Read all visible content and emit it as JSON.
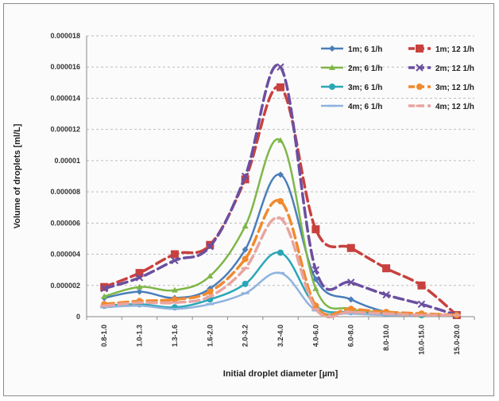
{
  "chart_data": {
    "type": "line",
    "xlabel": "Initial droplet diameter [µm]",
    "ylabel": "Volume of droplets [ml/L]",
    "categories": [
      "0.8-1.0",
      "1.0-1.3",
      "1.3-1.6",
      "1.6-2.0",
      "2.0-3.2",
      "3.2-4.0",
      "4.0-6.0",
      "6.0-8.0",
      "8.0-10.0",
      "10.0-15.0",
      "15.0-20.0"
    ],
    "ylim": [
      0,
      1.8e-05
    ],
    "yticks": [
      {
        "value": 0,
        "label": "0"
      },
      {
        "value": 2e-06,
        "label": "0.000002"
      },
      {
        "value": 4e-06,
        "label": "0.000004"
      },
      {
        "value": 6e-06,
        "label": "0.000006"
      },
      {
        "value": 8e-06,
        "label": "0.000008"
      },
      {
        "value": 1e-05,
        "label": "0.00001"
      },
      {
        "value": 1.2e-05,
        "label": "0.000012"
      },
      {
        "value": 1.4e-05,
        "label": "0.000014"
      },
      {
        "value": 1.6e-05,
        "label": "0.000016"
      },
      {
        "value": 1.8e-05,
        "label": "0.000018"
      }
    ],
    "grid": true,
    "legend_position": "top-right",
    "series": [
      {
        "name": "1m; 6 1/h",
        "color": "#4a7ebb",
        "dash": "solid",
        "marker": "diamond",
        "values": [
          1.2e-06,
          1.6e-06,
          1.2e-06,
          1.8e-06,
          4.3e-06,
          9.1e-06,
          2.4e-06,
          1.1e-06,
          3e-07,
          1e-07,
          1e-07
        ]
      },
      {
        "name": "2m; 6 1/h",
        "color": "#7fb648",
        "dash": "solid",
        "marker": "triangle",
        "values": [
          1.3e-06,
          1.9e-06,
          1.7e-06,
          2.6e-06,
          5.8e-06,
          1.13e-05,
          1.8e-06,
          5e-07,
          3e-07,
          1e-07,
          1e-07
        ]
      },
      {
        "name": "3m; 6 1/h",
        "color": "#2aa7b6",
        "dash": "solid",
        "marker": "circle",
        "values": [
          7e-07,
          8e-07,
          6e-07,
          1.1e-06,
          2.1e-06,
          4.1e-06,
          7e-07,
          3e-07,
          2e-07,
          1e-07,
          1e-07
        ]
      },
      {
        "name": "4m; 6 1/h",
        "color": "#8fb3de",
        "dash": "solid",
        "marker": "dash",
        "values": [
          6e-07,
          7e-07,
          5e-07,
          8e-07,
          1.5e-06,
          2.8e-06,
          4e-07,
          2e-07,
          1e-07,
          1e-07,
          1e-07
        ]
      },
      {
        "name": "1m;  12 1/h",
        "color": "#c8413e",
        "dash": "dashed",
        "marker": "square",
        "values": [
          1.9e-06,
          2.8e-06,
          4e-06,
          4.6e-06,
          8.8e-06,
          1.47e-05,
          5.6e-06,
          4.4e-06,
          3.1e-06,
          2e-06,
          1e-07
        ]
      },
      {
        "name": "2m;  12 1/h",
        "color": "#6b4fa0",
        "dash": "dashed",
        "marker": "x",
        "values": [
          1.8e-06,
          2.5e-06,
          3.6e-06,
          4.5e-06,
          9e-06,
          1.6e-05,
          3e-06,
          2.2e-06,
          1.4e-06,
          8e-07,
          1e-07
        ]
      },
      {
        "name": "3m; 12 1/h",
        "color": "#f08a2e",
        "dash": "dashed",
        "marker": "circle",
        "values": [
          8e-07,
          1e-06,
          1.1e-06,
          1.6e-06,
          3.7e-06,
          7.4e-06,
          7e-07,
          5e-07,
          3e-07,
          2e-07,
          1e-07
        ]
      },
      {
        "name": "4m;  12 1/h",
        "color": "#e8a4a0",
        "dash": "dashed",
        "marker": "dash",
        "values": [
          7e-07,
          9e-07,
          9e-07,
          1.3e-06,
          3.1e-06,
          6.3e-06,
          5e-07,
          3e-07,
          2e-07,
          1e-07,
          1e-07
        ]
      }
    ]
  }
}
